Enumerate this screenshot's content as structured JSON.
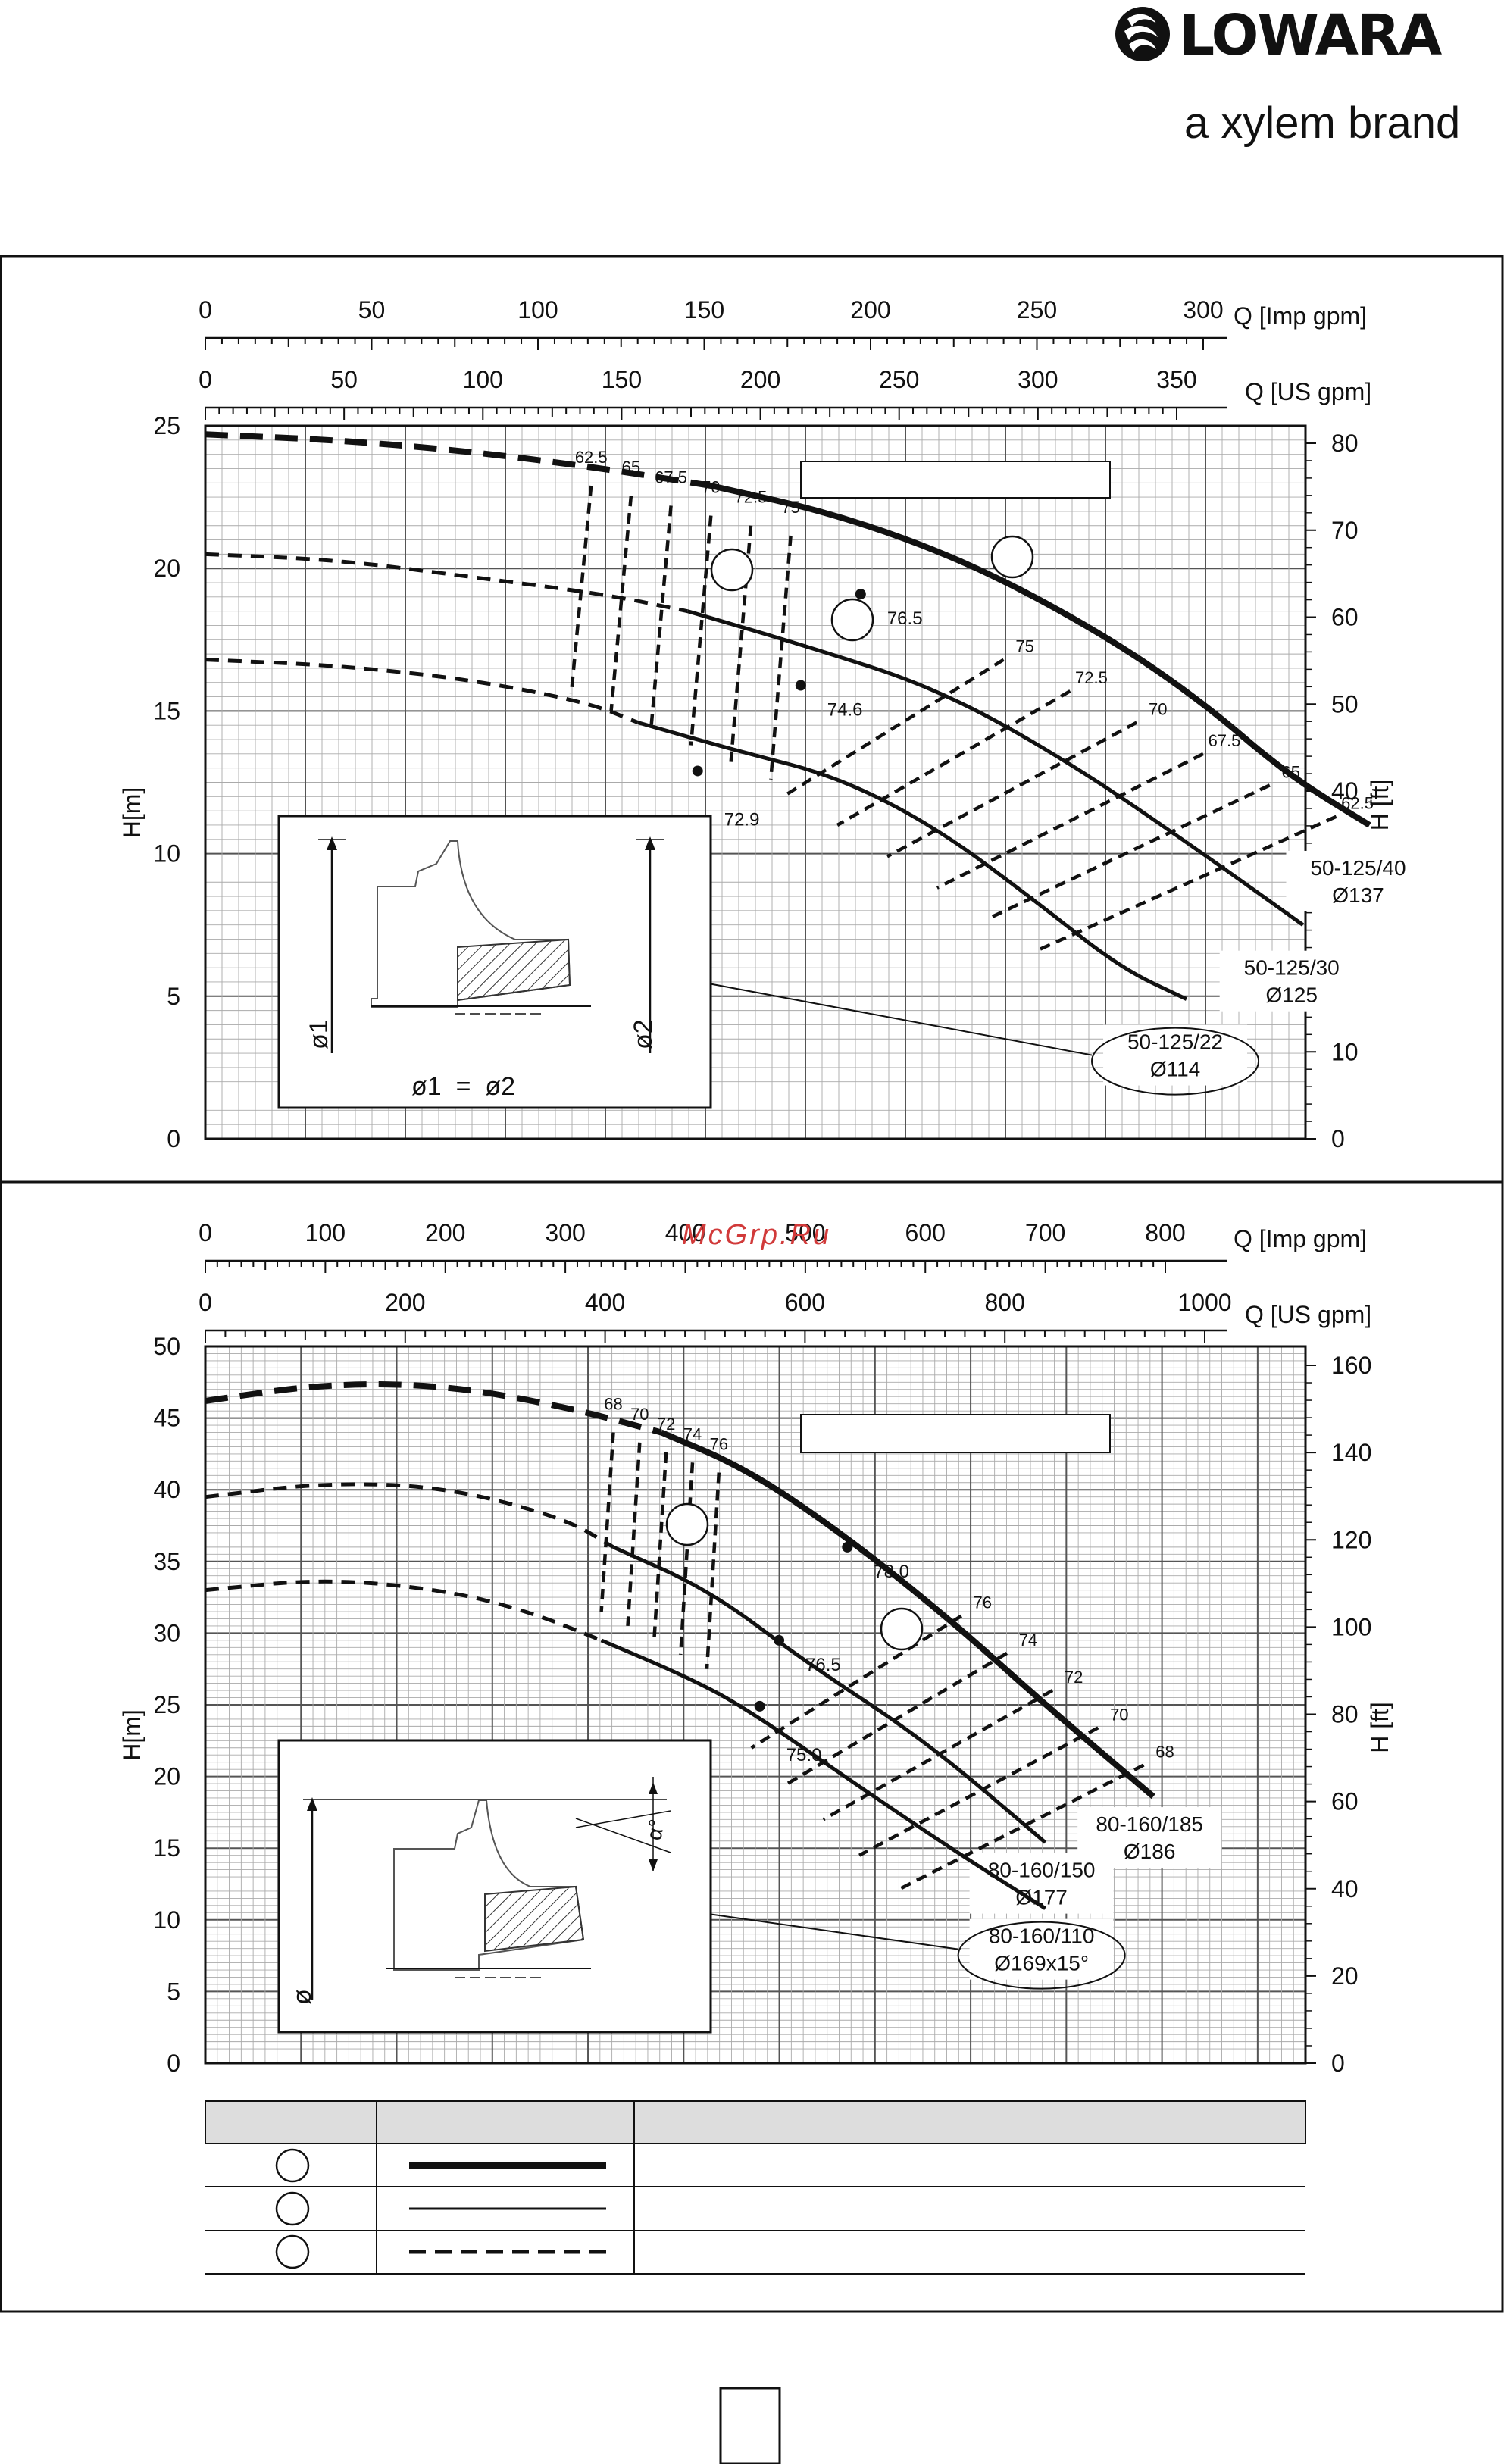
{
  "brand": {
    "name": "LOWARA",
    "tagline": "a xylem brand"
  },
  "watermark": "McGrp.Ru",
  "charts": [
    {
      "type": "line",
      "top_axis_imp": {
        "label": "Q [Imp gpm]",
        "ticks": [
          "0",
          "50",
          "100",
          "150",
          "200",
          "250",
          "300"
        ]
      },
      "top_axis_us": {
        "label": "Q [US gpm]",
        "ticks": [
          "0",
          "50",
          "100",
          "150",
          "200",
          "250",
          "300",
          "350"
        ]
      },
      "ylabel_left": "H[m]",
      "ylabel_right": "H [ft]",
      "yticks_left": [
        "0",
        "5",
        "10",
        "15",
        "20",
        "25"
      ],
      "yticks_right": [
        "0",
        "10",
        "20",
        "30",
        "40",
        "50",
        "60",
        "70",
        "80"
      ],
      "ylim_m": [
        0,
        25
      ],
      "xlim_imp": [
        0,
        330
      ],
      "curves": [
        {
          "label1": "50-125/40",
          "label2": "Ø137",
          "dashed": [
            [
              0,
              24.7
            ],
            [
              40,
              24.5
            ],
            [
              80,
              24.1
            ],
            [
              120,
              23.5
            ],
            [
              152,
              22.9
            ]
          ],
          "solid": [
            [
              152,
              22.9
            ],
            [
              190,
              21.9
            ],
            [
              230,
              20.2
            ],
            [
              270,
              17.7
            ],
            [
              300,
              15.3
            ],
            [
              325,
              12.8
            ],
            [
              350,
              11.0
            ]
          ]
        },
        {
          "label1": "50-125/30",
          "label2": "Ø125",
          "dashed": [
            [
              0,
              20.5
            ],
            [
              40,
              20.3
            ],
            [
              80,
              19.7
            ],
            [
              120,
              19.1
            ],
            [
              145,
              18.5
            ]
          ],
          "solid": [
            [
              145,
              18.5
            ],
            [
              180,
              17.3
            ],
            [
              220,
              15.8
            ],
            [
              260,
              13.2
            ],
            [
              300,
              10.0
            ],
            [
              330,
              7.5
            ]
          ]
        },
        {
          "label1": "50-125/22",
          "label2": "Ø114",
          "dashed": [
            [
              0,
              16.8
            ],
            [
              40,
              16.6
            ],
            [
              80,
              16.1
            ],
            [
              115,
              15.3
            ],
            [
              130,
              14.6
            ]
          ],
          "solid": [
            [
              130,
              14.6
            ],
            [
              160,
              13.6
            ],
            [
              190,
              12.7
            ],
            [
              220,
              10.9
            ],
            [
              250,
              8.3
            ],
            [
              275,
              6.0
            ],
            [
              295,
              4.9
            ]
          ]
        }
      ],
      "bep_points": [
        {
          "q": 197,
          "h": 19.1,
          "label": "76.5"
        },
        {
          "q": 179,
          "h": 15.9,
          "label": "74.6"
        },
        {
          "q": 148,
          "h": 12.9,
          "label": "72.9"
        }
      ],
      "eff_labels_left": [
        "62.5",
        "65",
        "67.5",
        "70",
        "72.5",
        "75"
      ],
      "eff_labels_right": [
        "75",
        "72.5",
        "70",
        "67.5",
        "65",
        "62.5"
      ],
      "legend_box_text": ""
    },
    {
      "type": "line",
      "top_axis_imp": {
        "label": "Q [Imp gpm]",
        "ticks": [
          "0",
          "100",
          "200",
          "300",
          "400",
          "500",
          "600",
          "700",
          "800"
        ]
      },
      "top_axis_us": {
        "label": "Q [US gpm]",
        "ticks": [
          "0",
          "200",
          "400",
          "600",
          "800",
          "1000"
        ]
      },
      "ylabel_left": "H[m]",
      "ylabel_right": "H [ft]",
      "yticks_left": [
        "0",
        "5",
        "10",
        "15",
        "20",
        "25",
        "30",
        "35",
        "40",
        "45",
        "50"
      ],
      "yticks_right": [
        "0",
        "20",
        "40",
        "60",
        "80",
        "100",
        "120",
        "140",
        "160"
      ],
      "ylim_m": [
        0,
        50
      ],
      "xlim_imp": [
        0,
        920
      ],
      "curves": [
        {
          "label1": "80-160/185",
          "label2": "Ø186",
          "dashed": [
            [
              0,
              46.2
            ],
            [
              100,
              47.4
            ],
            [
              200,
              47.3
            ],
            [
              300,
              45.8
            ],
            [
              380,
              44.0
            ]
          ],
          "solid": [
            [
              380,
              44.0
            ],
            [
              450,
              41.5
            ],
            [
              530,
              37.0
            ],
            [
              620,
              31.0
            ],
            [
              700,
              25.0
            ],
            [
              790,
              18.6
            ]
          ]
        },
        {
          "label1": "80-160/150",
          "label2": "Ø177",
          "dashed": [
            [
              0,
              39.5
            ],
            [
              100,
              40.5
            ],
            [
              200,
              40.2
            ],
            [
              300,
              38.0
            ],
            [
              340,
              36.0
            ]
          ],
          "solid": [
            [
              340,
              36.0
            ],
            [
              420,
              33.0
            ],
            [
              500,
              28.0
            ],
            [
              600,
              22.5
            ],
            [
              700,
              15.4
            ]
          ]
        },
        {
          "label1": "80-160/110",
          "label2": "Ø169x15°",
          "dashed": [
            [
              0,
              33.0
            ],
            [
              100,
              33.8
            ],
            [
              200,
              33.0
            ],
            [
              270,
              31.5
            ],
            [
              330,
              29.5
            ]
          ],
          "solid": [
            [
              330,
              29.5
            ],
            [
              400,
              27.0
            ],
            [
              450,
              24.8
            ],
            [
              550,
              19.0
            ],
            [
              630,
              14.5
            ],
            [
              700,
              10.8
            ]
          ]
        }
      ],
      "bep_points": [
        {
          "q": 535,
          "h": 36.0,
          "label": "78.0"
        },
        {
          "q": 478,
          "h": 29.5,
          "label": "76.5"
        },
        {
          "q": 462,
          "h": 24.9,
          "label": "75.0"
        }
      ],
      "eff_labels_left": [
        "68",
        "70",
        "72",
        "74",
        "76"
      ],
      "eff_labels_right": [
        "76",
        "74",
        "72",
        "70",
        "68"
      ],
      "legend_box_text": ""
    }
  ],
  "legend_table": {
    "headers": [
      "",
      "",
      ""
    ],
    "rows": [
      {
        "line": "thick",
        "text": ""
      },
      {
        "line": "thin",
        "text": ""
      },
      {
        "line": "dashed",
        "text": ""
      }
    ]
  },
  "diagram1": {
    "formula": "ø1  =  ø2",
    "dim1": "ø1",
    "dim2": "ø2"
  },
  "diagram2": {
    "dim": "ø",
    "angle": "α°"
  },
  "page_box_text": ""
}
